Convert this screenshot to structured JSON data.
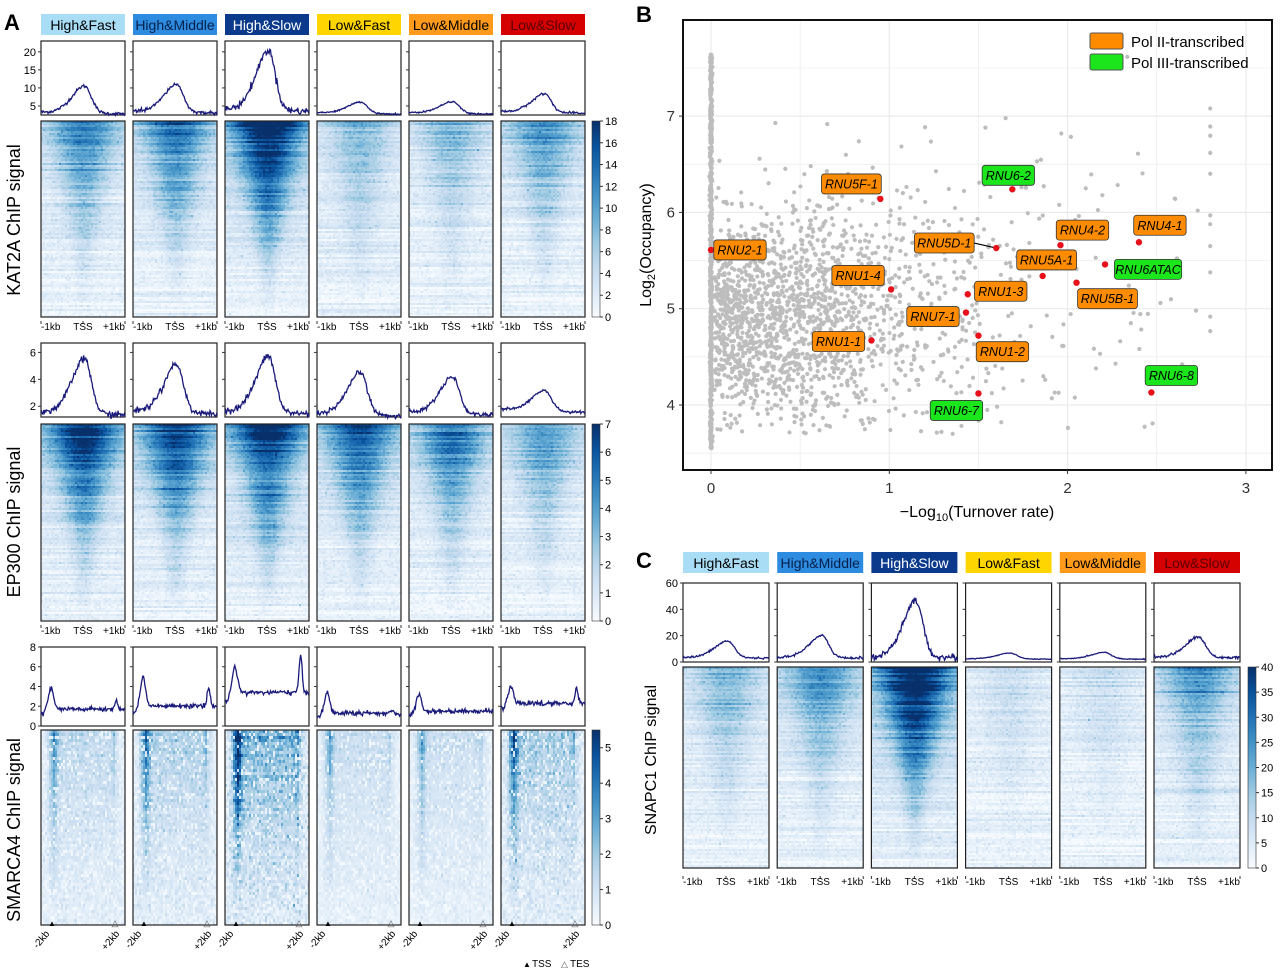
{
  "panel_labels": [
    "A",
    "B",
    "C"
  ],
  "groups": [
    {
      "name": "High&Fast",
      "color": "#a9dcf5",
      "text_color": "#000000"
    },
    {
      "name": "High&Middle",
      "color": "#2d8be0",
      "text_color": "#08204a"
    },
    {
      "name": "High&Slow",
      "color": "#0b3a8c",
      "text_color": "#ffffff"
    },
    {
      "name": "Low&Fast",
      "color": "#ffd500",
      "text_color": "#000000"
    },
    {
      "name": "Low&Middle",
      "color": "#ff9a1c",
      "text_color": "#000000"
    },
    {
      "name": "Low&Slow",
      "color": "#d50000",
      "text_color": "#5a0000"
    }
  ],
  "colors": {
    "heat_low": "#f7fbff",
    "heat_high": "#08306b",
    "profile_line": "#1a1a7a",
    "scatter_gray": "#bdbdbd",
    "highlight_red": "#e8101a"
  },
  "marker_legend": {
    "tss": "TSS",
    "tes": "TES",
    "tss_symbol": "▲",
    "tes_symbol": "△"
  },
  "chart_data": [
    {
      "type": "heatmap",
      "panel": "A",
      "ylabel": "KAT2A ChIP signal",
      "xticks": [
        "-1kb",
        "TSS",
        "+1kb"
      ],
      "profile_ylim": [
        2.5,
        23
      ],
      "profile_yticks": [
        5,
        10,
        15,
        20
      ],
      "profile_peak": [
        10.7,
        11.2,
        20.5,
        6.3,
        6.4,
        8.6
      ],
      "profile_baseline": [
        3.3,
        3.6,
        4.2,
        3.2,
        3.2,
        3.5
      ],
      "colorbar_range": [
        0,
        18
      ],
      "colorbar_ticks": [
        0,
        2,
        4,
        6,
        8,
        10,
        12,
        14,
        16,
        18
      ]
    },
    {
      "type": "heatmap",
      "panel": "A",
      "ylabel": "EP300 ChIP signal",
      "xticks": [
        "-1kb",
        "TSS",
        "+1kb"
      ],
      "profile_ylim": [
        1.2,
        6.7
      ],
      "profile_yticks": [
        2,
        4,
        6
      ],
      "profile_peak": [
        5.6,
        5.2,
        5.8,
        4.6,
        4.3,
        3.3
      ],
      "profile_baseline": [
        1.6,
        1.7,
        1.7,
        1.5,
        1.6,
        1.8
      ],
      "colorbar_range": [
        0,
        7
      ],
      "colorbar_ticks": [
        0,
        1,
        2,
        3,
        4,
        5,
        6,
        7
      ]
    },
    {
      "type": "heatmap",
      "panel": "A",
      "ylabel": "SMARCA4 ChIP signal",
      "xticks": [
        "-2kb",
        "+2kb"
      ],
      "profile_ylim": [
        0,
        8
      ],
      "profile_yticks": [
        0,
        2,
        4,
        6,
        8
      ],
      "profile_tss_peak": [
        3.8,
        5.0,
        6.0,
        3.4,
        3.2,
        4.0
      ],
      "profile_tes_peak": [
        2.6,
        3.8,
        7.2,
        1.6,
        1.6,
        3.9
      ],
      "profile_body": [
        1.7,
        2.0,
        3.4,
        1.3,
        1.5,
        2.3
      ],
      "colorbar_range": [
        0,
        5.5
      ],
      "colorbar_ticks": [
        0,
        1,
        2,
        3,
        4,
        5
      ]
    },
    {
      "type": "scatter",
      "panel": "B",
      "xlabel": {
        "main": "−Log",
        "sub": "10",
        "rest": "(Turnover rate)"
      },
      "ylabel": {
        "main": "Log",
        "sub": "2",
        "rest": "(Occupancy)"
      },
      "xlim": [
        -0.16,
        3.15
      ],
      "ylim": [
        3.4,
        7.95
      ],
      "xticks": [
        0,
        1,
        2,
        3
      ],
      "yticks": [
        4,
        5,
        6,
        7
      ],
      "grid": true,
      "legend_position": "top-right",
      "legend": [
        {
          "label": "Pol II-transcribed",
          "color": "#ff8c00"
        },
        {
          "label": "Pol III-transcribed",
          "color": "#1be51b"
        }
      ],
      "highlighted": [
        {
          "label": "RNU2-1",
          "x": 0.0,
          "y": 5.61,
          "pol": "II"
        },
        {
          "label": "RNU5F-1",
          "x": 0.95,
          "y": 6.14,
          "pol": "II"
        },
        {
          "label": "RNU6-2",
          "x": 1.69,
          "y": 6.24,
          "pol": "III"
        },
        {
          "label": "RNU5D-1",
          "x": 1.6,
          "y": 5.63,
          "pol": "II"
        },
        {
          "label": "RNU4-2",
          "x": 1.96,
          "y": 5.66,
          "pol": "II"
        },
        {
          "label": "RNU4-1",
          "x": 2.4,
          "y": 5.69,
          "pol": "II"
        },
        {
          "label": "RNU1-4",
          "x": 1.01,
          "y": 5.2,
          "pol": "II"
        },
        {
          "label": "RNU5A-1",
          "x": 1.86,
          "y": 5.34,
          "pol": "II"
        },
        {
          "label": "RNU6ATAC",
          "x": 2.21,
          "y": 5.46,
          "pol": "III"
        },
        {
          "label": "RNU5B-1",
          "x": 2.05,
          "y": 5.27,
          "pol": "II"
        },
        {
          "label": "RNU1-3",
          "x": 1.44,
          "y": 5.15,
          "pol": "II"
        },
        {
          "label": "RNU7-1",
          "x": 1.43,
          "y": 4.96,
          "pol": "II"
        },
        {
          "label": "RNU1-1",
          "x": 0.9,
          "y": 4.67,
          "pol": "II"
        },
        {
          "label": "RNU1-2",
          "x": 1.5,
          "y": 4.72,
          "pol": "II"
        },
        {
          "label": "RNU6-7",
          "x": 1.5,
          "y": 4.12,
          "pol": "III"
        },
        {
          "label": "RNU6-8",
          "x": 2.47,
          "y": 4.13,
          "pol": "III"
        }
      ]
    },
    {
      "type": "heatmap",
      "panel": "C",
      "ylabel": "SNAPC1 ChIP signal",
      "xticks": [
        "-1kb",
        "TSS",
        "+1kb"
      ],
      "profile_ylim": [
        0,
        60
      ],
      "profile_yticks": [
        0,
        20,
        40,
        60
      ],
      "profile_peak": [
        16,
        20,
        46,
        7,
        7.5,
        19
      ],
      "profile_baseline": [
        3.5,
        3.5,
        4,
        2.5,
        2.5,
        4
      ],
      "colorbar_range": [
        0,
        40
      ],
      "colorbar_ticks": [
        0,
        5,
        10,
        15,
        20,
        25,
        30,
        35,
        40
      ]
    }
  ]
}
